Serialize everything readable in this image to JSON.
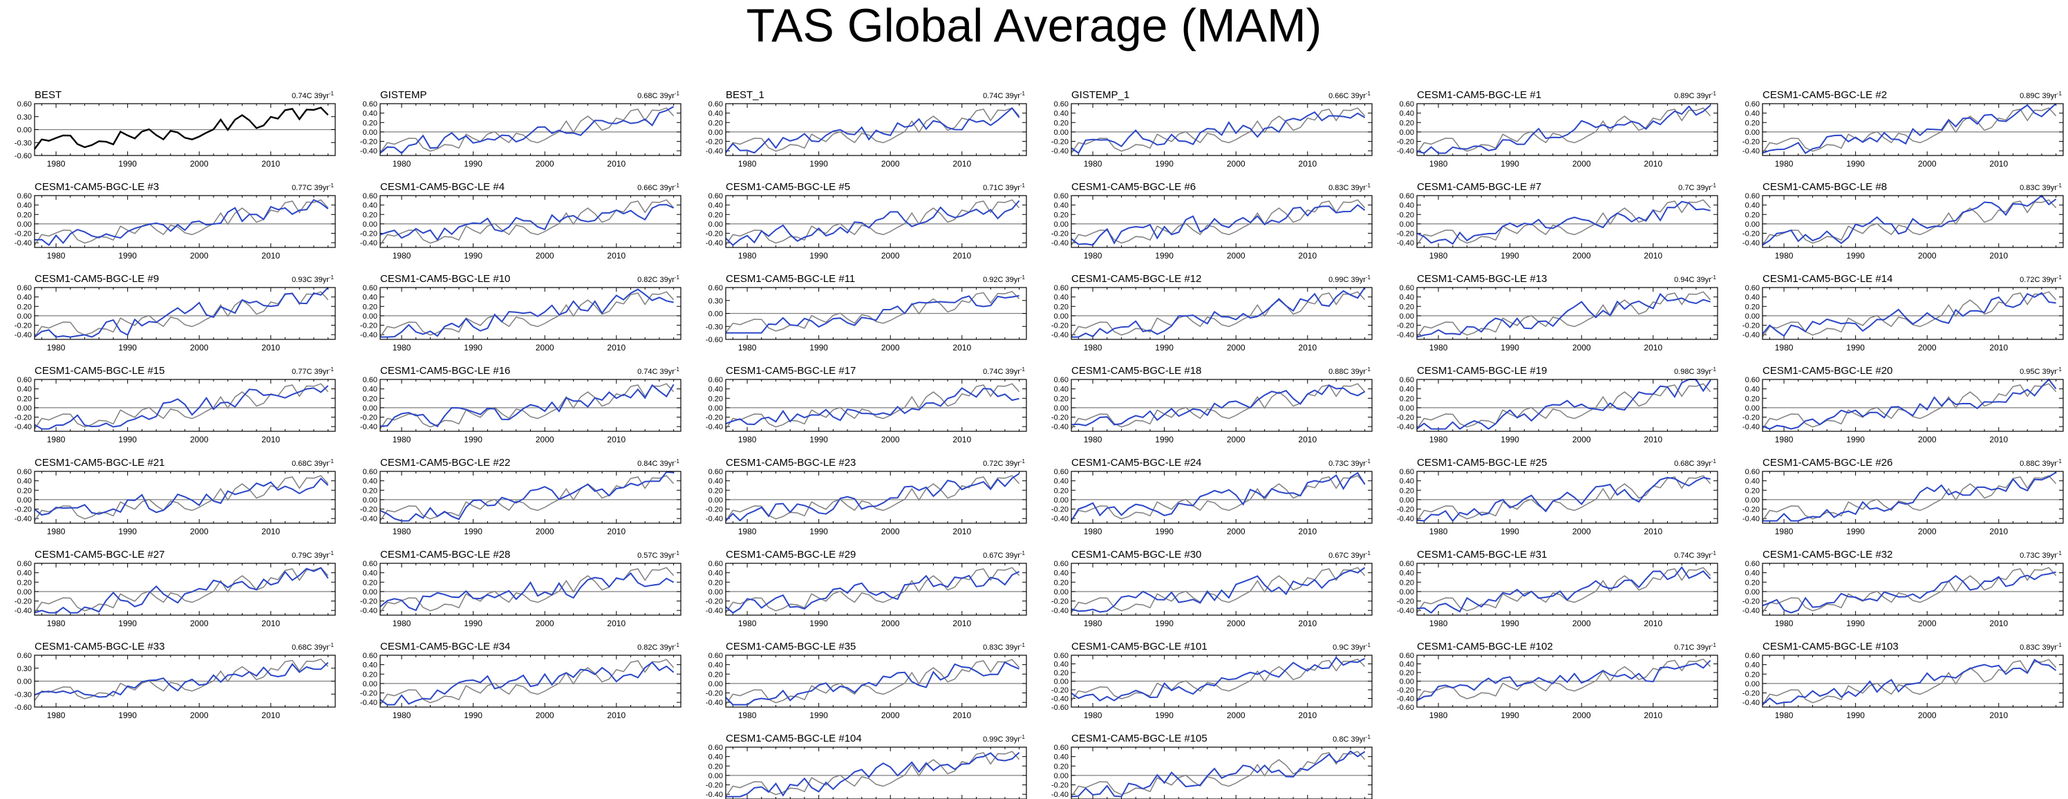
{
  "title": "TAS Global Average (MAM)",
  "colors": {
    "reference": "#000000",
    "observed": "#7f7f7f",
    "model": "#2a46c8",
    "zero_line": "#7f7f7f",
    "frame": "#000000"
  },
  "chart_data": {
    "type": "line",
    "x_range": [
      1977,
      2019
    ],
    "x_ticks": [
      "1980",
      "1990",
      "2000",
      "2010"
    ],
    "trend_unit": "39yr",
    "panels": [
      {
        "name": "BEST",
        "trend": "0.74C",
        "ylim": [
          -0.6,
          0.6
        ],
        "yticks": [
          "0.60",
          "0.30",
          "0.00",
          "-0.30",
          "-0.60"
        ],
        "reference": true
      },
      {
        "name": "GISTEMP",
        "trend": "0.68C",
        "ylim": [
          -0.5,
          0.6
        ],
        "yticks": [
          "0.60",
          "0.40",
          "0.20",
          "0.00",
          "-0.20",
          "-0.40"
        ]
      },
      {
        "name": "BEST_1",
        "trend": "0.74C",
        "ylim": [
          -0.5,
          0.6
        ],
        "yticks": [
          "0.60",
          "0.40",
          "0.20",
          "0.00",
          "-0.20",
          "-0.40"
        ]
      },
      {
        "name": "GISTEMP_1",
        "trend": "0.66C",
        "ylim": [
          -0.5,
          0.6
        ],
        "yticks": [
          "0.60",
          "0.40",
          "0.20",
          "0.00",
          "-0.20",
          "-0.40"
        ]
      },
      {
        "name": "CESM1-CAM5-BGC-LE #1",
        "trend": "0.89C",
        "ylim": [
          -0.5,
          0.6
        ],
        "yticks": [
          "0.60",
          "0.40",
          "0.20",
          "0.00",
          "-0.20",
          "-0.40"
        ]
      },
      {
        "name": "CESM1-CAM5-BGC-LE #2",
        "trend": "0.89C",
        "ylim": [
          -0.5,
          0.6
        ],
        "yticks": [
          "0.60",
          "0.40",
          "0.20",
          "0.00",
          "-0.20",
          "-0.40"
        ]
      },
      {
        "name": "CESM1-CAM5-BGC-LE #3",
        "trend": "0.77C",
        "ylim": [
          -0.5,
          0.6
        ],
        "yticks": [
          "0.60",
          "0.40",
          "0.20",
          "0.00",
          "-0.20",
          "-0.40"
        ]
      },
      {
        "name": "CESM1-CAM5-BGC-LE #4",
        "trend": "0.66C",
        "ylim": [
          -0.5,
          0.6
        ],
        "yticks": [
          "0.60",
          "0.40",
          "0.20",
          "0.00",
          "-0.20",
          "-0.40"
        ]
      },
      {
        "name": "CESM1-CAM5-BGC-LE #5",
        "trend": "0.71C",
        "ylim": [
          -0.5,
          0.6
        ],
        "yticks": [
          "0.60",
          "0.40",
          "0.20",
          "0.00",
          "-0.20",
          "-0.40"
        ]
      },
      {
        "name": "CESM1-CAM5-BGC-LE #6",
        "trend": "0.83C",
        "ylim": [
          -0.5,
          0.6
        ],
        "yticks": [
          "0.60",
          "0.40",
          "0.20",
          "0.00",
          "-0.20",
          "-0.40"
        ]
      },
      {
        "name": "CESM1-CAM5-BGC-LE #7",
        "trend": "0.7C",
        "ylim": [
          -0.5,
          0.6
        ],
        "yticks": [
          "0.60",
          "0.40",
          "0.20",
          "0.00",
          "-0.20",
          "-0.40"
        ]
      },
      {
        "name": "CESM1-CAM5-BGC-LE #8",
        "trend": "0.83C",
        "ylim": [
          -0.5,
          0.6
        ],
        "yticks": [
          "0.60",
          "0.40",
          "0.20",
          "0.00",
          "-0.20",
          "-0.40"
        ]
      },
      {
        "name": "CESM1-CAM5-BGC-LE #9",
        "trend": "0.93C",
        "ylim": [
          -0.5,
          0.6
        ],
        "yticks": [
          "0.60",
          "0.40",
          "0.20",
          "0.00",
          "-0.20",
          "-0.40"
        ]
      },
      {
        "name": "CESM1-CAM5-BGC-LE #10",
        "trend": "0.82C",
        "ylim": [
          -0.5,
          0.6
        ],
        "yticks": [
          "0.60",
          "0.40",
          "0.20",
          "0.00",
          "-0.20",
          "-0.40"
        ]
      },
      {
        "name": "CESM1-CAM5-BGC-LE #11",
        "trend": "0.92C",
        "ylim": [
          -0.6,
          0.6
        ],
        "yticks": [
          "0.60",
          "0.30",
          "0.00",
          "-0.30",
          "-0.60"
        ]
      },
      {
        "name": "CESM1-CAM5-BGC-LE #12",
        "trend": "0.99C",
        "ylim": [
          -0.5,
          0.6
        ],
        "yticks": [
          "0.60",
          "0.40",
          "0.20",
          "0.00",
          "-0.20",
          "-0.40"
        ]
      },
      {
        "name": "CESM1-CAM5-BGC-LE #13",
        "trend": "0.94C",
        "ylim": [
          -0.5,
          0.6
        ],
        "yticks": [
          "0.60",
          "0.40",
          "0.20",
          "0.00",
          "-0.20",
          "-0.40"
        ]
      },
      {
        "name": "CESM1-CAM5-BGC-LE #14",
        "trend": "0.72C",
        "ylim": [
          -0.5,
          0.6
        ],
        "yticks": [
          "0.60",
          "0.40",
          "0.20",
          "0.00",
          "-0.20",
          "-0.40"
        ]
      },
      {
        "name": "CESM1-CAM5-BGC-LE #15",
        "trend": "0.77C",
        "ylim": [
          -0.5,
          0.6
        ],
        "yticks": [
          "0.60",
          "0.40",
          "0.20",
          "0.00",
          "-0.20",
          "-0.40"
        ]
      },
      {
        "name": "CESM1-CAM5-BGC-LE #16",
        "trend": "0.74C",
        "ylim": [
          -0.5,
          0.6
        ],
        "yticks": [
          "0.60",
          "0.40",
          "0.20",
          "0.00",
          "-0.20",
          "-0.40"
        ]
      },
      {
        "name": "CESM1-CAM5-BGC-LE #17",
        "trend": "0.74C",
        "ylim": [
          -0.5,
          0.6
        ],
        "yticks": [
          "0.60",
          "0.40",
          "0.20",
          "0.00",
          "-0.20",
          "-0.40"
        ]
      },
      {
        "name": "CESM1-CAM5-BGC-LE #18",
        "trend": "0.88C",
        "ylim": [
          -0.5,
          0.6
        ],
        "yticks": [
          "0.60",
          "0.40",
          "0.20",
          "0.00",
          "-0.20",
          "-0.40"
        ]
      },
      {
        "name": "CESM1-CAM5-BGC-LE #19",
        "trend": "0.98C",
        "ylim": [
          -0.5,
          0.6
        ],
        "yticks": [
          "0.60",
          "0.40",
          "0.20",
          "0.00",
          "-0.20",
          "-0.40"
        ]
      },
      {
        "name": "CESM1-CAM5-BGC-LE #20",
        "trend": "0.95C",
        "ylim": [
          -0.5,
          0.6
        ],
        "yticks": [
          "0.60",
          "0.40",
          "0.20",
          "0.00",
          "-0.20",
          "-0.40"
        ]
      },
      {
        "name": "CESM1-CAM5-BGC-LE #21",
        "trend": "0.68C",
        "ylim": [
          -0.5,
          0.6
        ],
        "yticks": [
          "0.60",
          "0.40",
          "0.20",
          "0.00",
          "-0.20",
          "-0.40"
        ]
      },
      {
        "name": "CESM1-CAM5-BGC-LE #22",
        "trend": "0.84C",
        "ylim": [
          -0.5,
          0.6
        ],
        "yticks": [
          "0.60",
          "0.40",
          "0.20",
          "0.00",
          "-0.20",
          "-0.40"
        ]
      },
      {
        "name": "CESM1-CAM5-BGC-LE #23",
        "trend": "0.72C",
        "ylim": [
          -0.5,
          0.6
        ],
        "yticks": [
          "0.60",
          "0.40",
          "0.20",
          "0.00",
          "-0.20",
          "-0.40"
        ]
      },
      {
        "name": "CESM1-CAM5-BGC-LE #24",
        "trend": "0.73C",
        "ylim": [
          -0.5,
          0.6
        ],
        "yticks": [
          "0.60",
          "0.40",
          "0.20",
          "0.00",
          "-0.20",
          "-0.40"
        ]
      },
      {
        "name": "CESM1-CAM5-BGC-LE #25",
        "trend": "0.68C",
        "ylim": [
          -0.5,
          0.6
        ],
        "yticks": [
          "0.60",
          "0.40",
          "0.20",
          "0.00",
          "-0.20",
          "-0.40"
        ]
      },
      {
        "name": "CESM1-CAM5-BGC-LE #26",
        "trend": "0.88C",
        "ylim": [
          -0.5,
          0.6
        ],
        "yticks": [
          "0.60",
          "0.40",
          "0.20",
          "0.00",
          "-0.20",
          "-0.40"
        ]
      },
      {
        "name": "CESM1-CAM5-BGC-LE #27",
        "trend": "0.79C",
        "ylim": [
          -0.5,
          0.6
        ],
        "yticks": [
          "0.60",
          "0.40",
          "0.20",
          "0.00",
          "-0.20",
          "-0.40"
        ]
      },
      {
        "name": "CESM1-CAM5-BGC-LE #28",
        "trend": "0.57C",
        "ylim": [
          -0.5,
          0.6
        ],
        "yticks": [
          "0.60",
          "0.40",
          "0.20",
          "0.00",
          "-0.20",
          "-0.40"
        ]
      },
      {
        "name": "CESM1-CAM5-BGC-LE #29",
        "trend": "0.67C",
        "ylim": [
          -0.5,
          0.6
        ],
        "yticks": [
          "0.60",
          "0.40",
          "0.20",
          "0.00",
          "-0.20",
          "-0.40"
        ]
      },
      {
        "name": "CESM1-CAM5-BGC-LE #30",
        "trend": "0.67C",
        "ylim": [
          -0.5,
          0.6
        ],
        "yticks": [
          "0.60",
          "0.40",
          "0.20",
          "0.00",
          "-0.20",
          "-0.40"
        ]
      },
      {
        "name": "CESM1-CAM5-BGC-LE #31",
        "trend": "0.74C",
        "ylim": [
          -0.5,
          0.6
        ],
        "yticks": [
          "0.60",
          "0.40",
          "0.20",
          "0.00",
          "-0.20",
          "-0.40"
        ]
      },
      {
        "name": "CESM1-CAM5-BGC-LE #32",
        "trend": "0.73C",
        "ylim": [
          -0.5,
          0.6
        ],
        "yticks": [
          "0.60",
          "0.40",
          "0.20",
          "0.00",
          "-0.20",
          "-0.40"
        ]
      },
      {
        "name": "CESM1-CAM5-BGC-LE #33",
        "trend": "0.68C",
        "ylim": [
          -0.6,
          0.6
        ],
        "yticks": [
          "0.60",
          "0.30",
          "0.00",
          "-0.30",
          "-0.60"
        ]
      },
      {
        "name": "CESM1-CAM5-BGC-LE #34",
        "trend": "0.82C",
        "ylim": [
          -0.5,
          0.6
        ],
        "yticks": [
          "0.60",
          "0.40",
          "0.20",
          "0.00",
          "-0.20",
          "-0.40"
        ]
      },
      {
        "name": "CESM1-CAM5-BGC-LE #35",
        "trend": "0.83C",
        "ylim": [
          -0.5,
          0.6
        ],
        "yticks": [
          "0.60",
          "0.40",
          "0.20",
          "0.00",
          "-0.20",
          "-0.40"
        ]
      },
      {
        "name": "CESM1-CAM5-BGC-LE #101",
        "trend": "0.9C",
        "ylim": [
          -0.6,
          0.6
        ],
        "yticks": [
          "0.60",
          "0.40",
          "0.20",
          "0.00",
          "-0.20",
          "-0.40",
          "-0.60"
        ]
      },
      {
        "name": "CESM1-CAM5-BGC-LE #102",
        "trend": "0.71C",
        "ylim": [
          -0.6,
          0.6
        ],
        "yticks": [
          "0.60",
          "0.40",
          "0.20",
          "0.00",
          "-0.20",
          "-0.40",
          "-0.60"
        ]
      },
      {
        "name": "CESM1-CAM5-BGC-LE #103",
        "trend": "0.83C",
        "ylim": [
          -0.5,
          0.6
        ],
        "yticks": [
          "0.60",
          "0.40",
          "0.20",
          "0.00",
          "-0.20",
          "-0.40"
        ]
      },
      {
        "name": "CESM1-CAM5-BGC-LE #104",
        "trend": "0.99C",
        "ylim": [
          -0.5,
          0.6
        ],
        "yticks": [
          "0.60",
          "0.40",
          "0.20",
          "0.00",
          "-0.20",
          "-0.40"
        ]
      },
      {
        "name": "CESM1-CAM5-BGC-LE #105",
        "trend": "0.8C",
        "ylim": [
          -0.5,
          0.6
        ],
        "yticks": [
          "0.60",
          "0.40",
          "0.20",
          "0.00",
          "-0.20",
          "-0.40"
        ]
      }
    ]
  }
}
